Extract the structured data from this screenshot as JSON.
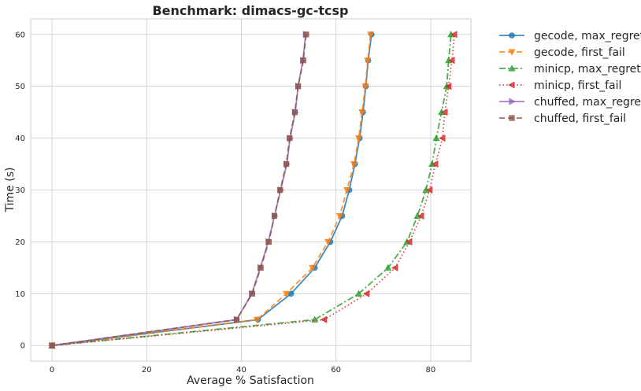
{
  "chart_data": {
    "type": "line",
    "title": "Benchmark: dimacs-gc-tcsp",
    "xlabel": "Average % Satisfaction",
    "ylabel": "Time (s)",
    "xlim": [
      -4.5,
      88.5
    ],
    "ylim": [
      -3,
      63
    ],
    "xticks": [
      0,
      20,
      40,
      60,
      80
    ],
    "yticks": [
      0,
      10,
      20,
      30,
      40,
      50,
      60
    ],
    "grid": true,
    "legend_position": "outside-right-top",
    "series": [
      {
        "name": "gecode, max_regret",
        "color": "#1f77b4",
        "dash": "solid",
        "marker": "circle",
        "points": [
          [
            0,
            0
          ],
          [
            43.5,
            5
          ],
          [
            50.5,
            10
          ],
          [
            55.5,
            15
          ],
          [
            58.8,
            20
          ],
          [
            61.3,
            25
          ],
          [
            62.8,
            30
          ],
          [
            64,
            35
          ],
          [
            65,
            40
          ],
          [
            65.7,
            45
          ],
          [
            66.3,
            50
          ],
          [
            66.8,
            55
          ],
          [
            67.5,
            60
          ]
        ]
      },
      {
        "name": "gecode, first_fail",
        "color": "#ff7f0e",
        "dash": "dashed",
        "marker": "triangle-down",
        "points": [
          [
            0,
            0
          ],
          [
            43.3,
            5
          ],
          [
            49.5,
            10
          ],
          [
            55,
            15
          ],
          [
            58.3,
            20
          ],
          [
            60.8,
            25
          ],
          [
            62.3,
            30
          ],
          [
            63.8,
            35
          ],
          [
            64.8,
            40
          ],
          [
            65.5,
            45
          ],
          [
            66.2,
            50
          ],
          [
            66.7,
            55
          ],
          [
            67.3,
            60
          ]
        ]
      },
      {
        "name": "minicp, max_regret",
        "color": "#2ca02c",
        "dash": "dashdot",
        "marker": "triangle-up",
        "points": [
          [
            0,
            0
          ],
          [
            55.5,
            5
          ],
          [
            64.8,
            10
          ],
          [
            71,
            15
          ],
          [
            75,
            20
          ],
          [
            77.2,
            25
          ],
          [
            79,
            30
          ],
          [
            80.3,
            35
          ],
          [
            81.2,
            40
          ],
          [
            82.3,
            45
          ],
          [
            83.4,
            50
          ],
          [
            83.8,
            55
          ],
          [
            84.3,
            60
          ]
        ]
      },
      {
        "name": "minicp, first_fail",
        "color": "#d62728",
        "dash": "dotted",
        "marker": "triangle-left",
        "points": [
          [
            0,
            0
          ],
          [
            57.5,
            5
          ],
          [
            66.5,
            10
          ],
          [
            72.5,
            15
          ],
          [
            75.5,
            20
          ],
          [
            78,
            25
          ],
          [
            79.8,
            30
          ],
          [
            81,
            35
          ],
          [
            82.5,
            40
          ],
          [
            83,
            45
          ],
          [
            83.8,
            50
          ],
          [
            84.5,
            55
          ],
          [
            85,
            60
          ]
        ]
      },
      {
        "name": "chuffed, max_regret",
        "color": "#9467bd",
        "dash": "solid",
        "marker": "triangle-right",
        "points": [
          [
            0,
            0
          ],
          [
            39,
            5
          ],
          [
            42.2,
            10
          ],
          [
            44,
            15
          ],
          [
            45.7,
            20
          ],
          [
            47,
            25
          ],
          [
            48.3,
            30
          ],
          [
            49.6,
            35
          ],
          [
            50.3,
            40
          ],
          [
            51.4,
            45
          ],
          [
            52,
            50
          ],
          [
            53,
            55
          ],
          [
            53.6,
            60
          ]
        ]
      },
      {
        "name": "chuffed, first_fail",
        "color": "#8c564b",
        "dash": "dashed",
        "marker": "square",
        "points": [
          [
            0,
            0
          ],
          [
            39,
            5
          ],
          [
            42.3,
            10
          ],
          [
            44.1,
            15
          ],
          [
            45.8,
            20
          ],
          [
            47,
            25
          ],
          [
            48.2,
            30
          ],
          [
            49.5,
            35
          ],
          [
            50.2,
            40
          ],
          [
            51.3,
            45
          ],
          [
            52,
            50
          ],
          [
            53.1,
            55
          ],
          [
            53.7,
            60
          ]
        ]
      }
    ]
  }
}
